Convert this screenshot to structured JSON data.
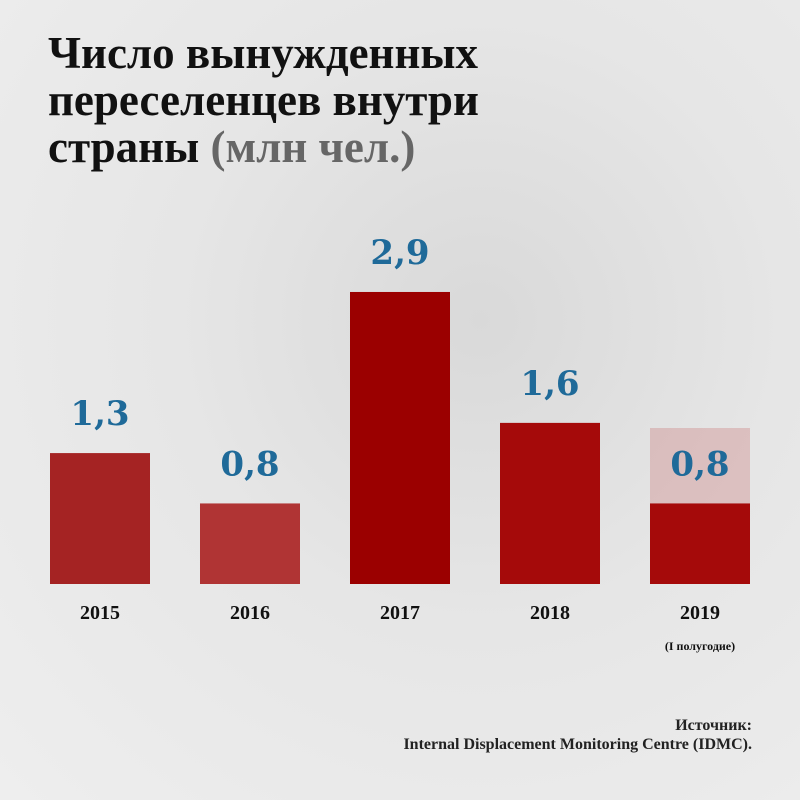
{
  "chart_data": {
    "type": "bar",
    "title": "Число вынужденных переселенцев внутри страны",
    "unit": "(млн чел.)",
    "categories": [
      "2015",
      "2016",
      "2017",
      "2018",
      "2019"
    ],
    "category_notes": [
      null,
      null,
      null,
      null,
      "(I полугодие)"
    ],
    "values": [
      1.3,
      0.8,
      2.9,
      1.6,
      0.8
    ],
    "value_labels": [
      "1,3",
      "0,8",
      "2,9",
      "1,6",
      "0,8"
    ],
    "colors": [
      "#a52323",
      "#b03434",
      "#9b0000",
      "#a50a0a",
      "#a50a0a"
    ]
  },
  "source_label": "Источник:",
  "source": "Internal Displacement Monitoring Centre (IDMC)."
}
